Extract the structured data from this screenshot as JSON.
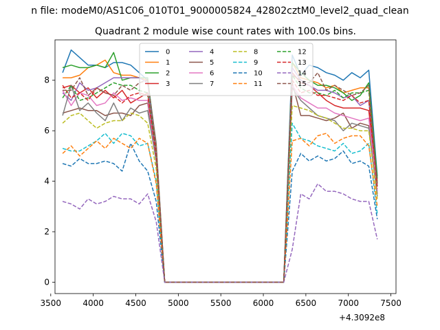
{
  "chart_data": {
    "type": "line",
    "suptitle": "n file: modeM0/AS1C06_010T01_9000005824_42802cztM0_level2_quad_clean",
    "title": "Quadrant 2 module wise count rates with 100.0s bins.",
    "xlabel": "",
    "ylabel": "",
    "x_offset_label": "+4.3092e8",
    "xlim": [
      3550,
      7560
    ],
    "ylim": [
      -0.45,
      9.6
    ],
    "xticks": [
      3500,
      4000,
      4500,
      5000,
      5500,
      6000,
      6500,
      7000,
      7500
    ],
    "yticks": [
      0,
      2,
      4,
      6,
      8
    ],
    "x": [
      3640,
      3740,
      3840,
      3940,
      4040,
      4140,
      4240,
      4340,
      4440,
      4540,
      4640,
      4740,
      4840,
      4940,
      5040,
      5140,
      5240,
      5340,
      5440,
      5540,
      5640,
      5740,
      5840,
      5940,
      6040,
      6140,
      6240,
      6340,
      6440,
      6540,
      6640,
      6740,
      6840,
      6940,
      7040,
      7140,
      7240,
      7340
    ],
    "legend": {
      "position": "top-center",
      "ncol": 4
    },
    "colors": [
      "#1f77b4",
      "#ff7f0e",
      "#2ca02c",
      "#d62728",
      "#9467bd",
      "#8c564b",
      "#e377c2",
      "#7f7f7f",
      "#bcbd22",
      "#17becf",
      "#1f77b4",
      "#ff7f0e",
      "#2ca02c",
      "#d62728",
      "#9467bd",
      "#8c564b"
    ],
    "series": [
      {
        "name": "0",
        "style": "solid",
        "values": [
          8.3,
          9.2,
          8.9,
          8.6,
          8.6,
          8.5,
          8.7,
          8.7,
          8.6,
          8.3,
          8.0,
          5.5,
          0,
          0,
          0,
          0,
          0,
          0,
          0,
          0,
          0,
          0,
          0,
          0,
          0,
          0,
          0,
          9.0,
          8.2,
          8.6,
          8.5,
          8.3,
          8.2,
          8.0,
          8.3,
          8.1,
          8.4,
          4.2
        ]
      },
      {
        "name": "1",
        "style": "solid",
        "values": [
          8.1,
          8.1,
          8.2,
          8.5,
          8.6,
          8.8,
          8.3,
          8.2,
          8.2,
          8.1,
          8.0,
          5.4,
          0,
          0,
          0,
          0,
          0,
          0,
          0,
          0,
          0,
          0,
          0,
          0,
          0,
          0,
          0,
          8.7,
          8.1,
          8.0,
          7.9,
          7.7,
          7.8,
          7.5,
          7.6,
          7.7,
          7.7,
          4.0
        ]
      },
      {
        "name": "2",
        "style": "solid",
        "values": [
          8.5,
          8.6,
          8.5,
          8.5,
          8.6,
          8.5,
          9.1,
          8.0,
          8.1,
          8.1,
          8.1,
          5.2,
          0,
          0,
          0,
          0,
          0,
          0,
          0,
          0,
          0,
          0,
          0,
          0,
          0,
          0,
          0,
          8.7,
          8.3,
          8.0,
          7.8,
          7.8,
          7.7,
          7.5,
          7.2,
          7.4,
          7.9,
          4.1
        ]
      },
      {
        "name": "3",
        "style": "solid",
        "values": [
          7.7,
          7.8,
          7.5,
          7.7,
          7.3,
          7.6,
          7.3,
          7.6,
          7.1,
          7.3,
          7.5,
          5.0,
          0,
          0,
          0,
          0,
          0,
          0,
          0,
          0,
          0,
          0,
          0,
          0,
          0,
          0,
          0,
          8.3,
          7.9,
          7.8,
          7.5,
          7.2,
          7.0,
          6.9,
          6.9,
          6.9,
          6.8,
          3.9
        ]
      },
      {
        "name": "4",
        "style": "solid",
        "values": [
          7.5,
          7.2,
          7.9,
          7.6,
          7.7,
          7.9,
          8.1,
          8.1,
          8.1,
          8.1,
          7.9,
          5.2,
          0,
          0,
          0,
          0,
          0,
          0,
          0,
          0,
          0,
          0,
          0,
          0,
          0,
          0,
          0,
          8.5,
          8.0,
          7.8,
          7.6,
          7.6,
          7.5,
          7.3,
          7.4,
          7.0,
          7.2,
          3.8
        ]
      },
      {
        "name": "5",
        "style": "solid",
        "values": [
          6.7,
          6.8,
          6.9,
          6.8,
          6.8,
          6.6,
          6.7,
          6.7,
          6.6,
          7.0,
          7.1,
          4.8,
          0,
          0,
          0,
          0,
          0,
          0,
          0,
          0,
          0,
          0,
          0,
          0,
          0,
          0,
          0,
          7.9,
          6.6,
          6.6,
          6.5,
          6.4,
          6.5,
          6.7,
          6.1,
          6.3,
          6.2,
          3.5
        ]
      },
      {
        "name": "6",
        "style": "solid",
        "values": [
          7.6,
          7.0,
          7.5,
          7.4,
          7.0,
          7.1,
          7.5,
          7.2,
          7.3,
          7.2,
          7.2,
          4.9,
          0,
          0,
          0,
          0,
          0,
          0,
          0,
          0,
          0,
          0,
          0,
          0,
          0,
          0,
          0,
          7.8,
          7.3,
          7.1,
          6.9,
          6.9,
          6.7,
          6.6,
          6.5,
          6.4,
          6.5,
          3.6
        ]
      },
      {
        "name": "7",
        "style": "solid",
        "values": [
          6.6,
          7.8,
          6.8,
          7.1,
          6.7,
          6.4,
          7.1,
          6.4,
          6.9,
          6.7,
          6.8,
          4.8,
          0,
          0,
          0,
          0,
          0,
          0,
          0,
          0,
          0,
          0,
          0,
          0,
          0,
          0,
          0,
          7.7,
          7.2,
          6.9,
          6.6,
          6.5,
          6.4,
          6.0,
          6.3,
          6.2,
          6.1,
          3.4
        ]
      },
      {
        "name": "8",
        "style": "dashed",
        "values": [
          6.3,
          6.6,
          6.7,
          6.4,
          6.1,
          6.3,
          6.4,
          6.4,
          6.7,
          6.6,
          6.3,
          4.5,
          0,
          0,
          0,
          0,
          0,
          0,
          0,
          0,
          0,
          0,
          0,
          0,
          0,
          0,
          0,
          7.0,
          6.9,
          6.8,
          6.6,
          6.5,
          6.3,
          6.1,
          6.1,
          6.0,
          6.0,
          3.3
        ]
      },
      {
        "name": "9",
        "style": "dashed",
        "values": [
          5.3,
          5.2,
          5.2,
          5.4,
          5.6,
          5.9,
          5.5,
          5.9,
          5.8,
          5.4,
          5.5,
          4.0,
          0,
          0,
          0,
          0,
          0,
          0,
          0,
          0,
          0,
          0,
          0,
          0,
          0,
          0,
          0,
          6.3,
          5.7,
          5.6,
          5.4,
          5.3,
          5.2,
          5.5,
          5.1,
          5.2,
          5.5,
          2.7
        ]
      },
      {
        "name": "10",
        "style": "dashed",
        "values": [
          4.7,
          4.6,
          4.9,
          4.7,
          4.7,
          4.8,
          4.7,
          4.4,
          5.5,
          4.8,
          4.4,
          3.2,
          0,
          0,
          0,
          0,
          0,
          0,
          0,
          0,
          0,
          0,
          0,
          0,
          0,
          0,
          0,
          4.4,
          5.1,
          4.8,
          5.0,
          4.8,
          4.9,
          5.2,
          4.7,
          4.8,
          4.6,
          2.5
        ]
      },
      {
        "name": "11",
        "style": "dashed",
        "values": [
          5.1,
          5.4,
          5.0,
          5.3,
          5.6,
          5.3,
          5.7,
          5.5,
          5.3,
          5.7,
          5.5,
          3.9,
          0,
          0,
          0,
          0,
          0,
          0,
          0,
          0,
          0,
          0,
          0,
          0,
          0,
          0,
          0,
          5.6,
          5.7,
          5.4,
          5.8,
          5.9,
          5.5,
          5.7,
          5.8,
          5.8,
          5.4,
          3.0
        ]
      },
      {
        "name": "12",
        "style": "dashed",
        "values": [
          7.3,
          7.8,
          7.2,
          7.3,
          7.5,
          7.7,
          7.9,
          7.8,
          7.8,
          7.6,
          7.5,
          5.1,
          0,
          0,
          0,
          0,
          0,
          0,
          0,
          0,
          0,
          0,
          0,
          0,
          0,
          0,
          0,
          8.2,
          7.7,
          7.5,
          7.5,
          7.4,
          7.6,
          7.3,
          7.5,
          7.5,
          7.6,
          3.8
        ]
      },
      {
        "name": "13",
        "style": "dashed",
        "values": [
          7.8,
          7.3,
          7.5,
          7.2,
          7.7,
          7.5,
          7.4,
          7.1,
          7.4,
          7.5,
          7.4,
          5.0,
          0,
          0,
          0,
          0,
          0,
          0,
          0,
          0,
          0,
          0,
          0,
          0,
          0,
          0,
          0,
          8.0,
          7.5,
          7.6,
          7.4,
          7.4,
          7.3,
          7.2,
          7.4,
          7.1,
          7.2,
          3.7
        ]
      },
      {
        "name": "14",
        "style": "dashed",
        "values": [
          3.2,
          3.1,
          2.9,
          3.3,
          3.1,
          3.2,
          3.4,
          3.3,
          3.3,
          3.1,
          3.5,
          2.4,
          0,
          0,
          0,
          0,
          0,
          0,
          0,
          0,
          0,
          0,
          0,
          0,
          0,
          0,
          0,
          1.3,
          3.5,
          3.3,
          3.9,
          3.6,
          3.6,
          3.5,
          3.3,
          3.2,
          3.2,
          1.7
        ]
      },
      {
        "name": "15",
        "style": "dashed",
        "values": [
          7.6,
          7.6,
          8.1,
          7.4,
          7.7,
          7.5,
          7.4,
          7.8,
          7.6,
          7.9,
          8.0,
          5.3,
          0,
          0,
          0,
          0,
          0,
          0,
          0,
          0,
          0,
          0,
          0,
          0,
          0,
          0,
          0,
          8.2,
          8.0,
          7.9,
          8.3,
          7.6,
          7.8,
          7.6,
          7.4,
          7.5,
          7.8,
          3.9
        ]
      }
    ]
  }
}
